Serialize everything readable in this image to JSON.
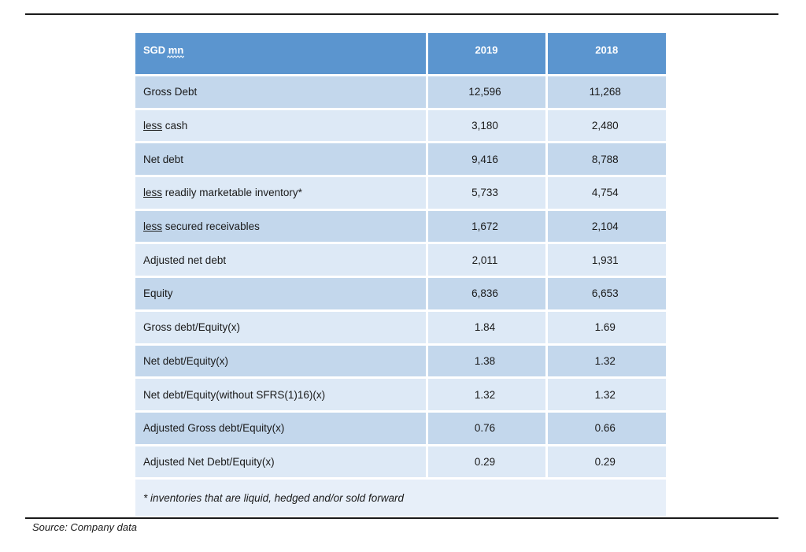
{
  "table": {
    "header": {
      "label": "SGD mn",
      "col1": "2019",
      "col2": "2018"
    },
    "rows": [
      {
        "pre": "",
        "label": "Gross Debt",
        "v2019": "12,596",
        "v2018": "11,268"
      },
      {
        "pre": "less",
        "label": " cash",
        "v2019": "3,180",
        "v2018": "2,480"
      },
      {
        "pre": "",
        "label": "Net debt",
        "v2019": "9,416",
        "v2018": "8,788"
      },
      {
        "pre": "less",
        "label": " readily marketable inventory*",
        "v2019": "5,733",
        "v2018": "4,754"
      },
      {
        "pre": "less",
        "label": " secured receivables",
        "v2019": "1,672",
        "v2018": "2,104"
      },
      {
        "pre": "",
        "label": "Adjusted net debt",
        "v2019": "2,011",
        "v2018": "1,931"
      },
      {
        "pre": "",
        "label": "Equity",
        "v2019": "6,836",
        "v2018": "6,653"
      },
      {
        "pre": "",
        "label": "Gross debt/Equity(x)",
        "v2019": "1.84",
        "v2018": "1.69"
      },
      {
        "pre": "",
        "label": "Net debt/Equity(x)",
        "v2019": "1.38",
        "v2018": "1.32"
      },
      {
        "pre": "",
        "label": "Net debt/Equity(without SFRS(1)16)(x)",
        "v2019": "1.32",
        "v2018": "1.32"
      },
      {
        "pre": "",
        "label": "Adjusted Gross debt/Equity(x)",
        "v2019": "0.76",
        "v2018": "0.66"
      },
      {
        "pre": "",
        "label": "Adjusted Net Debt/Equity(x)",
        "v2019": "0.29",
        "v2018": "0.29"
      }
    ],
    "footnote": "* inventories that are liquid, hedged and/or sold forward"
  },
  "source": "Source: Company data",
  "colors": {
    "header_bg": "#5b95cf",
    "row_dark": "#c3d7ec",
    "row_light": "#dde9f6"
  }
}
